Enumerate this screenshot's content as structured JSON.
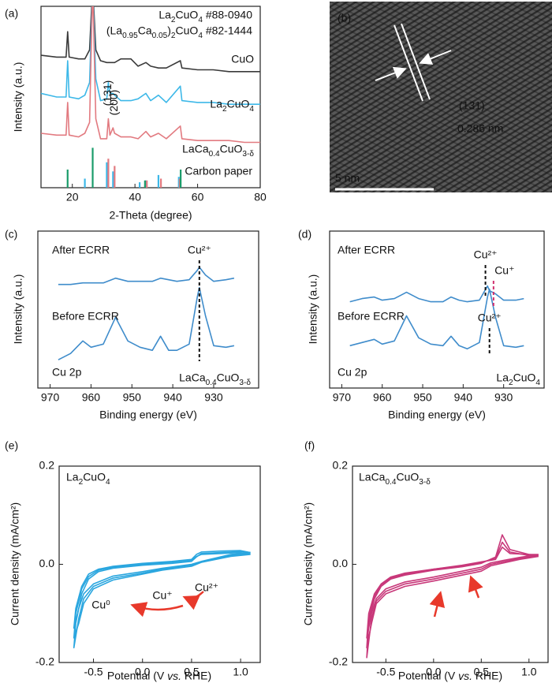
{
  "chart_data": [
    {
      "type": "line",
      "label": "(a)",
      "xlabel": "2-Theta (degree)",
      "ylabel": "Intensity (a.u.)",
      "xlim": [
        10,
        80
      ],
      "xticks": [
        20,
        40,
        60,
        80
      ],
      "ylim": [
        0,
        100
      ],
      "x": [
        10,
        15,
        18,
        18.5,
        19,
        22,
        24,
        25.5,
        26.5,
        27.5,
        29,
        31,
        31.5,
        32,
        33,
        33.5,
        35.5,
        38.7,
        41,
        43.5,
        45,
        47.5,
        50,
        54.5,
        55,
        60,
        65,
        70,
        75,
        80
      ],
      "series": [
        {
          "name": "CuO",
          "color": "#3a3a3a",
          "values": [
            73,
            72,
            72,
            86,
            72,
            71,
            71,
            76,
            112,
            76,
            70,
            69,
            69,
            69,
            69,
            69,
            71,
            71,
            67,
            69,
            67,
            66,
            66,
            70,
            66,
            65,
            65,
            64,
            64,
            64
          ]
        },
        {
          "name": "La2CuO4",
          "color": "#3db8e8",
          "values": [
            52,
            50,
            50,
            70,
            50,
            49,
            51,
            58,
            112,
            60,
            48,
            49,
            58,
            52,
            52,
            51,
            48,
            48,
            49,
            52,
            48,
            51,
            47,
            56,
            48,
            47,
            47,
            46,
            46,
            46
          ]
        },
        {
          "name": "LaCa0.4CuO3-δ",
          "color": "#e27a80",
          "values": [
            30,
            29,
            29,
            47,
            29,
            28,
            30,
            36,
            112,
            38,
            27,
            27,
            38,
            29,
            33,
            30,
            28,
            28,
            27,
            31,
            28,
            30,
            27,
            34,
            27,
            26,
            26,
            26,
            25,
            25
          ]
        }
      ],
      "references": [
        {
          "name": "La2CuO4 #88-0940",
          "color": "#3db8e8",
          "x": [
            24,
            31,
            33,
            41.5,
            43.5,
            47.5,
            54
          ],
          "values": [
            5,
            14,
            9,
            3,
            4,
            7,
            6
          ]
        },
        {
          "name": "(La0.95Ca0.05)2CuO4 #82-1444",
          "color": "#e27a80",
          "x": [
            31.5,
            33.5,
            43.8,
            48.3,
            54.3
          ],
          "values": [
            16,
            12,
            4,
            5,
            5
          ]
        },
        {
          "name": "Carbon paper",
          "color": "#1a9c6a",
          "x": [
            18.5,
            26.5,
            43.2,
            54.6
          ],
          "values": [
            10,
            22,
            4,
            10
          ]
        }
      ],
      "annotations": [
        {
          "text": "(131)",
          "x": 31.5
        },
        {
          "text": "(200)",
          "x": 33.5
        }
      ]
    },
    {
      "type": "image",
      "label": "(b)",
      "annotations": [
        {
          "text": "(131)"
        },
        {
          "text": "0.286 nm"
        },
        {
          "text": "5 nm"
        }
      ]
    },
    {
      "type": "line",
      "label": "(c)",
      "xlabel": "Binding energy (eV)",
      "ylabel": "Intensity (a.u.)",
      "xlim": [
        973,
        919
      ],
      "xticks": [
        970,
        960,
        950,
        940,
        930
      ],
      "ylim": [
        0,
        100
      ],
      "x": [
        968,
        965,
        962,
        960,
        957,
        954,
        951,
        948,
        945,
        943,
        941,
        939,
        936,
        934,
        933.5,
        932,
        930,
        927,
        925
      ],
      "series": [
        {
          "name": "After ECRR",
          "color": "#3f8ccb",
          "values": [
            66,
            66,
            67,
            67,
            67,
            70,
            68,
            68,
            68,
            70,
            69,
            68,
            69,
            75,
            77,
            72,
            68,
            69,
            70
          ]
        },
        {
          "name": "Before ECRR",
          "color": "#3f8ccb",
          "values": [
            18,
            22,
            30,
            26,
            28,
            45,
            30,
            26,
            24,
            33,
            24,
            24,
            28,
            58,
            64,
            46,
            27,
            26,
            27
          ]
        }
      ],
      "annotations": [
        {
          "text": "Cu²⁺",
          "x": 933.5
        },
        {
          "text": "Cu 2p"
        },
        {
          "text": "LaCa0.4CuO3-δ"
        }
      ]
    },
    {
      "type": "line",
      "label": "(d)",
      "xlabel": "Binding energy (eV)",
      "ylabel": "Intensity (a.u.)",
      "xlim": [
        973,
        920
      ],
      "xticks": [
        970,
        960,
        950,
        940,
        930
      ],
      "ylim": [
        0,
        100
      ],
      "x": [
        968,
        965,
        962,
        960,
        957,
        954,
        951,
        948,
        945,
        943,
        941,
        939,
        936,
        934,
        933.5,
        932,
        930,
        927,
        925
      ],
      "series": [
        {
          "name": "After ECRR",
          "color": "#3f8ccb",
          "values": [
            55,
            57,
            58,
            56,
            57,
            61,
            57,
            55,
            55,
            58,
            56,
            55,
            56,
            65,
            62,
            60,
            56,
            56,
            57
          ]
        },
        {
          "name": "Before ECRR",
          "color": "#3f8ccb",
          "values": [
            27,
            29,
            31,
            28,
            30,
            46,
            32,
            28,
            27,
            33,
            27,
            25,
            29,
            58,
            63,
            45,
            27,
            26,
            27
          ]
        }
      ],
      "annotations": [
        {
          "text": "Cu²⁺",
          "x": 934.5
        },
        {
          "text": "Cu⁺",
          "x": 932.5
        },
        {
          "text": "Cu²⁺",
          "x": 933.5
        },
        {
          "text": "Cu 2p"
        },
        {
          "text": "La2CuO4"
        }
      ]
    },
    {
      "type": "line",
      "label": "(e)",
      "xlabel": "Potential (V vs. RHE)",
      "ylabel": "Current density (mA/cm²)",
      "xlim": [
        -0.85,
        1.2
      ],
      "xticks": [
        -0.5,
        {
          "value": 0,
          "label": "0.0"
        },
        0.5,
        {
          "value": 1,
          "label": "1.0"
        }
      ],
      "ylim": [
        -0.2,
        0.2
      ],
      "yticks": [
        -0.2,
        {
          "value": 0,
          "label": "0.0"
        },
        0.2
      ],
      "x": [
        1.1,
        0.9,
        0.6,
        0.5,
        0.2,
        0,
        -0.3,
        -0.5,
        -0.6,
        -0.65,
        -0.7,
        -0.68,
        -0.62,
        -0.55,
        -0.45,
        -0.3,
        0,
        0.3,
        0.5,
        0.55,
        0.6,
        0.8,
        1.0,
        1.1
      ],
      "series": [
        {
          "color": "#2aa6df",
          "values": [
            0.022,
            0.018,
            0.005,
            -0.002,
            -0.01,
            -0.018,
            -0.028,
            -0.045,
            -0.07,
            -0.11,
            -0.17,
            -0.12,
            -0.06,
            -0.03,
            -0.015,
            -0.008,
            -0.002,
            0.002,
            0.006,
            0.015,
            0.022,
            0.024,
            0.026,
            0.024
          ]
        },
        {
          "color": "#2aa6df",
          "values": [
            0.02,
            0.016,
            0.004,
            -0.004,
            -0.012,
            -0.02,
            -0.032,
            -0.05,
            -0.08,
            -0.12,
            -0.15,
            -0.1,
            -0.05,
            -0.025,
            -0.012,
            -0.006,
            0,
            0.004,
            0.008,
            0.016,
            0.02,
            0.022,
            0.024,
            0.02
          ]
        },
        {
          "color": "#2aa6df",
          "values": [
            0.024,
            0.02,
            0.006,
            0,
            -0.008,
            -0.015,
            -0.024,
            -0.04,
            -0.06,
            -0.09,
            -0.13,
            -0.09,
            -0.045,
            -0.02,
            -0.01,
            -0.004,
            0.002,
            0.006,
            0.01,
            0.02,
            0.025,
            0.027,
            0.028,
            0.024
          ]
        }
      ],
      "annotations": [
        {
          "text": "La2CuO4"
        },
        {
          "text": "Cu⁰"
        },
        {
          "text": "Cu⁺"
        },
        {
          "text": "Cu²⁺"
        }
      ]
    },
    {
      "type": "line",
      "label": "(f)",
      "xlabel": "Potential (V vs. RHE)",
      "ylabel": "Current density (mA/cm²)",
      "xlim": [
        -0.85,
        1.2
      ],
      "xticks": [
        -0.5,
        {
          "value": 0,
          "label": "0.0"
        },
        0.5,
        {
          "value": 1,
          "label": "1.0"
        }
      ],
      "ylim": [
        -0.2,
        0.2
      ],
      "yticks": [
        -0.2,
        {
          "value": 0,
          "label": "0.0"
        },
        0.2
      ],
      "x": [
        1.1,
        0.9,
        0.6,
        0.5,
        0.2,
        0,
        -0.3,
        -0.5,
        -0.6,
        -0.65,
        -0.7,
        -0.68,
        -0.62,
        -0.55,
        -0.45,
        -0.3,
        0,
        0.3,
        0.5,
        0.65,
        0.72,
        0.8,
        1.0,
        1.1
      ],
      "series": [
        {
          "color": "#c8387a",
          "values": [
            0.018,
            0.012,
            0,
            -0.01,
            -0.022,
            -0.03,
            -0.04,
            -0.055,
            -0.075,
            -0.11,
            -0.19,
            -0.12,
            -0.07,
            -0.045,
            -0.03,
            -0.022,
            -0.012,
            -0.005,
            0.002,
            0.015,
            0.06,
            0.03,
            0.02,
            0.018
          ]
        },
        {
          "color": "#c8387a",
          "values": [
            0.016,
            0.01,
            -0.003,
            -0.014,
            -0.026,
            -0.034,
            -0.045,
            -0.06,
            -0.08,
            -0.12,
            -0.17,
            -0.11,
            -0.065,
            -0.042,
            -0.028,
            -0.02,
            -0.01,
            -0.003,
            0.004,
            0.012,
            0.045,
            0.025,
            0.018,
            0.016
          ]
        },
        {
          "color": "#c8387a",
          "values": [
            0.02,
            0.014,
            0.003,
            -0.006,
            -0.018,
            -0.026,
            -0.036,
            -0.05,
            -0.07,
            -0.1,
            -0.15,
            -0.1,
            -0.06,
            -0.04,
            -0.026,
            -0.018,
            -0.01,
            -0.002,
            0.005,
            0.01,
            0.035,
            0.022,
            0.02,
            0.02
          ]
        }
      ],
      "annotations": [
        {
          "text": "LaCa0.4CuO3-δ"
        }
      ]
    }
  ]
}
